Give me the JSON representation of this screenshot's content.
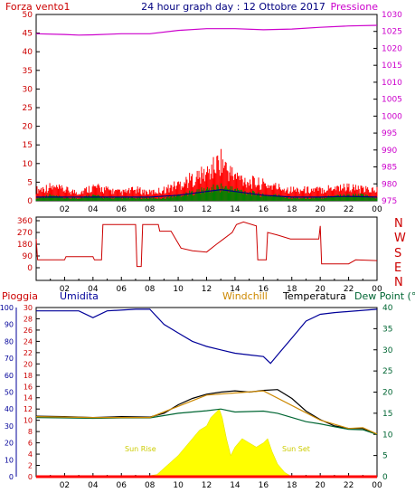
{
  "header": {
    "left_label": "Forza vento1",
    "title": "24 hour graph day : 12 Ottobre 2017",
    "right_label": "Pressione"
  },
  "colors": {
    "wind_avg": "#000080",
    "wind_gust": "#ff0000",
    "wind_speed": "#008000",
    "pressure": "#cc00cc",
    "direction": "#cc0000",
    "humidity": "#000099",
    "temperature": "#000000",
    "dew_point": "#006633",
    "windchill": "#cc8800",
    "rain": "#ff0000",
    "solar": "#ffff00",
    "axis": "#000000"
  },
  "time_axis": {
    "labels": [
      "02",
      "04",
      "06",
      "08",
      "10",
      "12",
      "14",
      "16",
      "18",
      "20",
      "22",
      "00"
    ],
    "range_hours": [
      0,
      24
    ]
  },
  "compass": {
    "left_ticks": [
      "360",
      "270",
      "180",
      "90",
      "0"
    ],
    "right_letters": [
      "N",
      "W",
      "S",
      "E",
      "N"
    ]
  },
  "bottom_legend": {
    "pioggia": "Pioggia",
    "umidita": "Umidita",
    "windchill": "Windchill",
    "temperatura": "Temperatura",
    "dewpoint": "Dew Point (°C"
  },
  "annotations": {
    "sunrise": "Sun Rise",
    "sunset": "Sun Set"
  },
  "chart_data": [
    {
      "type": "line",
      "id": "wind-pressure",
      "title": "24 hour graph day : 12 Ottobre 2017",
      "left_axis": {
        "label": "Forza vento1",
        "range": [
          0,
          50
        ],
        "ticks": [
          0,
          5,
          10,
          15,
          20,
          25,
          30,
          35,
          40,
          45,
          50
        ]
      },
      "right_axis": {
        "label": "Pressione",
        "range": [
          975,
          1030
        ],
        "ticks": [
          975,
          980,
          985,
          990,
          995,
          1000,
          1005,
          1010,
          1015,
          1020,
          1025,
          1030
        ]
      },
      "series": [
        {
          "axis": "right",
          "key": "pressure",
          "x": [
            0,
            2,
            3,
            4,
            6,
            8,
            10,
            12,
            14,
            16,
            18,
            20,
            22,
            24
          ],
          "y": [
            1024.3,
            1024.1,
            1023.9,
            1024.0,
            1024.3,
            1024.3,
            1025.3,
            1025.8,
            1025.8,
            1025.5,
            1025.7,
            1026.2,
            1026.6,
            1026.8
          ]
        },
        {
          "axis": "left",
          "key": "wind_gust",
          "x": [
            0,
            1,
            2,
            3,
            4,
            5,
            6,
            7,
            8,
            9,
            10,
            11,
            12,
            12.5,
            13,
            13.5,
            14,
            15,
            16,
            17,
            18,
            19,
            20,
            21,
            22,
            23,
            24
          ],
          "y": [
            4,
            5,
            4,
            3,
            5,
            4,
            3,
            4,
            3,
            4,
            6,
            8,
            10,
            12,
            15,
            11,
            9,
            7,
            6,
            5,
            4,
            4,
            4,
            5,
            5,
            4,
            4
          ]
        },
        {
          "axis": "left",
          "key": "wind_speed",
          "x": [
            0,
            1,
            2,
            3,
            4,
            5,
            6,
            7,
            8,
            9,
            10,
            11,
            12,
            13,
            14,
            15,
            16,
            17,
            18,
            19,
            20,
            21,
            22,
            23,
            24
          ],
          "y": [
            1,
            2,
            1,
            1,
            2,
            1,
            1,
            1,
            1,
            1,
            2,
            3,
            4,
            5,
            4,
            3,
            2,
            2,
            1,
            1,
            1,
            2,
            2,
            2,
            1
          ]
        },
        {
          "axis": "left",
          "key": "wind_avg",
          "x": [
            0,
            2,
            4,
            6,
            8,
            10,
            12,
            13,
            14,
            16,
            18,
            20,
            22,
            24
          ],
          "y": [
            1,
            1,
            1,
            1,
            1,
            1.5,
            2.5,
            3,
            2.5,
            1.5,
            1,
            1,
            1.2,
            1
          ]
        }
      ]
    },
    {
      "type": "line",
      "id": "wind-direction",
      "left_axis": {
        "range": [
          0,
          360
        ],
        "ticks": [
          0,
          90,
          180,
          270,
          360
        ]
      },
      "right_axis": {
        "labels": [
          "N",
          "W",
          "S",
          "E",
          "N"
        ]
      },
      "series": [
        {
          "key": "direction",
          "x": [
            0,
            0.1,
            2,
            2.1,
            4,
            4.1,
            4.6,
            4.7,
            7.0,
            7.1,
            7.4,
            7.5,
            8.6,
            8.7,
            9.5,
            10.2,
            11,
            12,
            12.7,
            13.2,
            13.8,
            14.1,
            14.6,
            15.5,
            15.6,
            16.2,
            16.3,
            17,
            17.9,
            18,
            19.9,
            20,
            20.1,
            22,
            22.5,
            24
          ],
          "y": [
            220,
            60,
            60,
            85,
            85,
            60,
            60,
            330,
            330,
            10,
            10,
            330,
            330,
            280,
            280,
            150,
            130,
            120,
            180,
            220,
            270,
            330,
            350,
            320,
            60,
            60,
            270,
            250,
            220,
            220,
            220,
            320,
            30,
            30,
            60,
            55
          ]
        }
      ]
    },
    {
      "type": "line",
      "id": "humidity-temperature",
      "left_axis": {
        "labels": [
          "Pioggia",
          "Umidita"
        ],
        "rain_ticks": [
          0,
          2,
          4,
          6,
          8,
          10,
          12,
          14,
          16,
          18,
          20,
          22,
          24,
          26,
          28,
          30
        ],
        "humidity_ticks": [
          0,
          10,
          20,
          30,
          40,
          50,
          60,
          70,
          80,
          90,
          100
        ]
      },
      "right_axis": {
        "label": "Dew Point (°C",
        "range": [
          0,
          40
        ],
        "ticks": [
          0,
          5,
          10,
          15,
          20,
          25,
          30,
          35,
          40
        ]
      },
      "series": [
        {
          "axis": "humidity",
          "key": "humidity",
          "x": [
            0,
            3,
            4,
            5,
            7,
            8,
            9,
            10,
            11,
            12,
            13,
            14,
            15,
            16,
            16.5,
            17,
            18,
            19,
            20,
            21,
            24
          ],
          "y": [
            98,
            98,
            94,
            98,
            99,
            99,
            90,
            85,
            80,
            77,
            75,
            73,
            72,
            71,
            67,
            72,
            82,
            92,
            96,
            97,
            99
          ]
        },
        {
          "axis": "right",
          "key": "temperature",
          "x": [
            0,
            2,
            4,
            6,
            8,
            9,
            10,
            11,
            12,
            13,
            14,
            15,
            16,
            17,
            18,
            19,
            20,
            21,
            22,
            23,
            24
          ],
          "y": [
            14.3,
            14.2,
            14.0,
            14.2,
            14.1,
            15.0,
            17.0,
            18.5,
            19.5,
            20.0,
            20.3,
            20.0,
            20.4,
            20.6,
            18.5,
            15.5,
            13.5,
            12.0,
            11.4,
            11.4,
            10.0
          ]
        },
        {
          "axis": "right",
          "key": "dew_point",
          "x": [
            0,
            2,
            4,
            6,
            8,
            10,
            12,
            13,
            14,
            16,
            17,
            18,
            19,
            20,
            21,
            22,
            23,
            24
          ],
          "y": [
            14.0,
            13.9,
            13.8,
            13.9,
            13.9,
            15.0,
            15.6,
            16.0,
            15.3,
            15.5,
            15.0,
            14.0,
            13.0,
            12.5,
            11.8,
            11.2,
            11.1,
            10.0
          ]
        },
        {
          "axis": "right",
          "key": "windchill",
          "x": [
            0,
            4,
            8,
            12,
            16,
            20,
            22,
            23,
            24
          ],
          "y": [
            14.2,
            14.0,
            14.0,
            19.3,
            20.3,
            13.4,
            11.4,
            11.6,
            10.1
          ]
        },
        {
          "axis": "rain",
          "key": "rain",
          "x": [
            0,
            24
          ],
          "y": [
            0,
            0
          ]
        },
        {
          "axis": "right",
          "key": "solar",
          "type": "area",
          "x": [
            0,
            7.5,
            8.5,
            9,
            10,
            10.5,
            11,
            11.5,
            12,
            12.3,
            12.6,
            12.9,
            13.1,
            13.4,
            13.7,
            14,
            14.5,
            15,
            15.5,
            16,
            16.3,
            16.6,
            17,
            17.5,
            18,
            24
          ],
          "y": [
            0,
            0,
            0.5,
            2,
            5,
            7,
            9,
            11,
            12,
            14,
            15,
            16,
            14,
            9,
            5,
            7,
            9,
            8,
            7,
            8,
            9,
            6,
            3,
            1,
            0,
            0
          ]
        }
      ]
    }
  ]
}
